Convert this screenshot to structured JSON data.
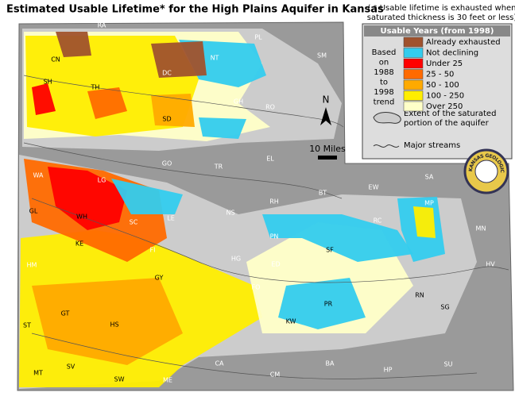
{
  "title": "Estimated Usable Lifetime* for the High Plains Aquifer in Kansas",
  "note_lines": [
    "( * Usable lifetime is exhausted when",
    "saturated thickness is 30 feet or less)"
  ],
  "legend": {
    "title": "Usable Years (from 1998)",
    "basis": [
      "Based",
      "on",
      "1988",
      "to",
      "1998",
      "trend"
    ],
    "items": [
      {
        "label": "Already exhausted",
        "color": "#a0522d"
      },
      {
        "label": "Not declining",
        "color": "#33ccee"
      },
      {
        "label": "Under 25",
        "color": "#ff0000"
      },
      {
        "label": "25 - 50",
        "color": "#ff6a00"
      },
      {
        "label": "50 - 100",
        "color": "#ffaa00"
      },
      {
        "label": "100 - 250",
        "color": "#ffee00"
      },
      {
        "label": "Over 250",
        "color": "#ffffc8"
      }
    ],
    "extent_lines": [
      "Extent of the saturated",
      "portion of the aquifer"
    ],
    "streams": "Major streams"
  },
  "north": "N",
  "scale": "10 Miles",
  "seal": "KANSAS GEOLOGICAL SURVEY",
  "counties": [
    "RA",
    "PL",
    "SM",
    "CN",
    "NT",
    "DC",
    "SH",
    "TH",
    "GH",
    "RO",
    "SD",
    "WA",
    "LG",
    "GO",
    "TR",
    "EL",
    "RH",
    "BT",
    "EW",
    "SA",
    "MP",
    "GL",
    "WH",
    "SC",
    "LE",
    "NS",
    "RC",
    "MN",
    "KE",
    "FI",
    "PN",
    "SF",
    "HM",
    "HG",
    "ED",
    "GY",
    "FO",
    "HV",
    "ST",
    "GT",
    "HS",
    "PR",
    "RN",
    "SG",
    "KW",
    "MT",
    "SV",
    "SW",
    "ME",
    "CA",
    "CM",
    "BA",
    "HP",
    "SU"
  ]
}
